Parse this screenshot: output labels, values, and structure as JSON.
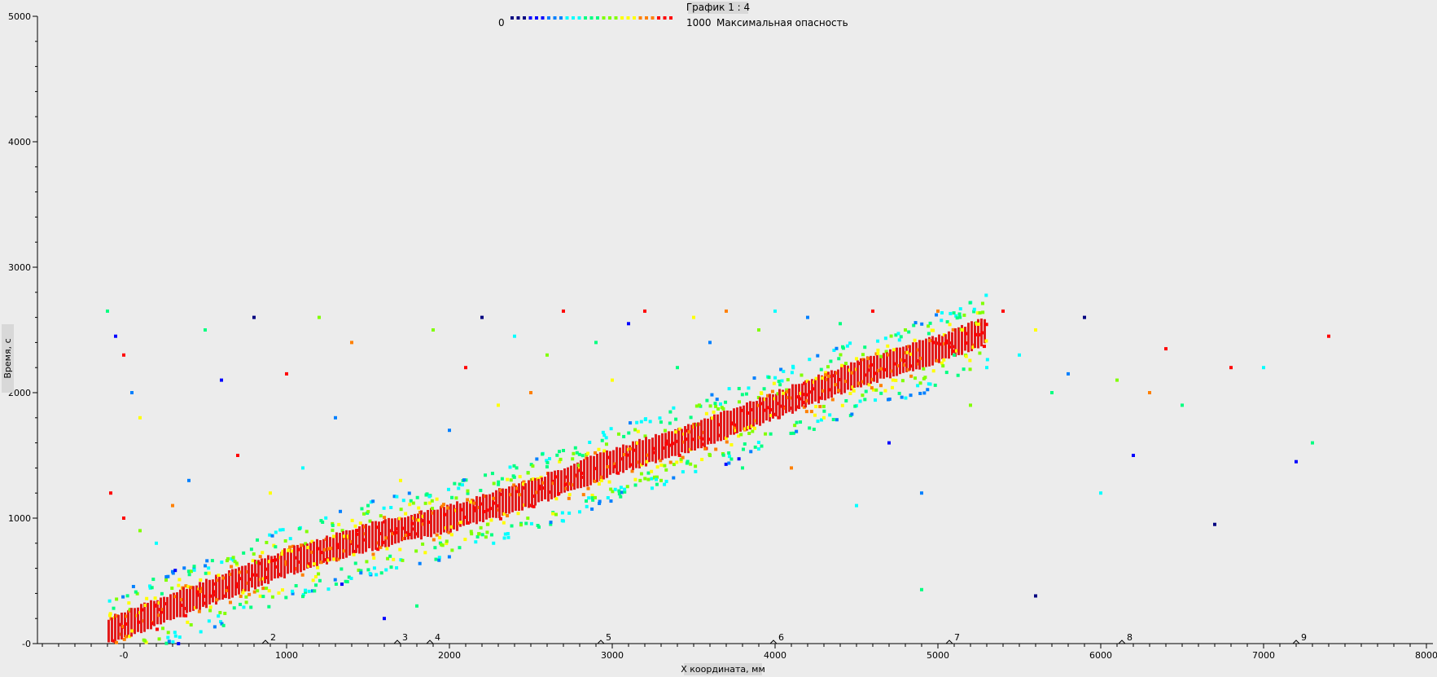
{
  "chart_data": {
    "type": "scatter",
    "title": "График 1 : 4",
    "xlabel": "X координата, мм",
    "ylabel": "Время, с",
    "xlim": [
      -500,
      8000
    ],
    "ylim": [
      0,
      5000
    ],
    "x_ticks": [
      0,
      1000,
      2000,
      3000,
      4000,
      5000,
      6000,
      7000,
      8000
    ],
    "x_tick_labels": [
      "-0",
      "1000",
      "2000",
      "3000",
      "4000",
      "5000",
      "6000",
      "7000",
      "8000"
    ],
    "y_ticks": [
      0,
      1000,
      2000,
      3000,
      4000,
      5000
    ],
    "y_tick_labels": [
      "-0",
      "1000",
      "2000",
      "3000",
      "4000",
      "5000"
    ],
    "color_scale": {
      "min_label": "0",
      "max_label": "1000",
      "caption": "Максимальная опасность",
      "colors": [
        "#000080",
        "#0000ff",
        "#0080ff",
        "#00ffff",
        "#00ff80",
        "#80ff00",
        "#ffff00",
        "#ff8000",
        "#ff0000"
      ]
    },
    "markers": [
      {
        "label": "2",
        "x": 870
      },
      {
        "label": "3",
        "x": 1680
      },
      {
        "label": "4",
        "x": 1880
      },
      {
        "label": "5",
        "x": 2930
      },
      {
        "label": "6",
        "x": 3990
      },
      {
        "label": "7",
        "x": 5070
      },
      {
        "label": "8",
        "x": 6130
      },
      {
        "label": "9",
        "x": 7200
      }
    ],
    "main_band": {
      "description_free": true,
      "points": [
        [
          -100,
          100
        ],
        [
          500,
          400
        ],
        [
          1000,
          650
        ],
        [
          1500,
          850
        ],
        [
          2000,
          1000
        ],
        [
          2500,
          1200
        ],
        [
          3000,
          1450
        ],
        [
          3500,
          1650
        ],
        [
          4000,
          1900
        ],
        [
          4500,
          2150
        ],
        [
          5000,
          2350
        ],
        [
          5300,
          2500
        ]
      ]
    },
    "scatter_points": [
      [
        -100,
        2650,
        500
      ],
      [
        -50,
        2450,
        200
      ],
      [
        0,
        2300,
        900
      ],
      [
        50,
        2000,
        300
      ],
      [
        100,
        1800,
        700
      ],
      [
        -80,
        1200,
        900
      ],
      [
        0,
        1000,
        950
      ],
      [
        100,
        900,
        600
      ],
      [
        200,
        800,
        400
      ],
      [
        300,
        1100,
        800
      ],
      [
        400,
        1300,
        300
      ],
      [
        500,
        2500,
        500
      ],
      [
        600,
        2100,
        200
      ],
      [
        700,
        1500,
        900
      ],
      [
        800,
        2600,
        100
      ],
      [
        900,
        1200,
        700
      ],
      [
        1000,
        2150,
        950
      ],
      [
        1100,
        1400,
        400
      ],
      [
        1200,
        2600,
        600
      ],
      [
        1300,
        1800,
        300
      ],
      [
        1400,
        2400,
        850
      ],
      [
        1500,
        1100,
        550
      ],
      [
        1600,
        200,
        150
      ],
      [
        1700,
        1300,
        750
      ],
      [
        1800,
        300,
        450
      ],
      [
        1900,
        2500,
        650
      ],
      [
        2000,
        1700,
        300
      ],
      [
        2100,
        2200,
        900
      ],
      [
        2200,
        2600,
        100
      ],
      [
        2300,
        1900,
        700
      ],
      [
        2400,
        2450,
        400
      ],
      [
        2500,
        2000,
        850
      ],
      [
        2600,
        2300,
        600
      ],
      [
        2700,
        2650,
        950
      ],
      [
        2800,
        1050,
        350
      ],
      [
        2900,
        2400,
        500
      ],
      [
        3000,
        2100,
        750
      ],
      [
        3100,
        2550,
        200
      ],
      [
        3200,
        2650,
        900
      ],
      [
        3300,
        1300,
        600
      ],
      [
        3400,
        2200,
        450
      ],
      [
        3500,
        2600,
        700
      ],
      [
        3600,
        2400,
        300
      ],
      [
        3700,
        2650,
        850
      ],
      [
        3800,
        1400,
        550
      ],
      [
        3900,
        2500,
        650
      ],
      [
        4000,
        2650,
        400
      ],
      [
        4100,
        1400,
        800
      ],
      [
        4200,
        2600,
        250
      ],
      [
        4300,
        1800,
        700
      ],
      [
        4400,
        2550,
        500
      ],
      [
        4500,
        1100,
        350
      ],
      [
        4600,
        2650,
        900
      ],
      [
        4700,
        1600,
        150
      ],
      [
        4800,
        2500,
        600
      ],
      [
        4900,
        1200,
        300
      ],
      [
        5000,
        2650,
        800
      ],
      [
        5100,
        2300,
        450
      ],
      [
        5200,
        1900,
        650
      ],
      [
        5300,
        2200,
        350
      ],
      [
        5400,
        2650,
        950
      ],
      [
        5500,
        2300,
        400
      ],
      [
        5600,
        2500,
        700
      ],
      [
        5700,
        2000,
        550
      ],
      [
        5800,
        2150,
        300
      ],
      [
        5900,
        2600,
        100
      ],
      [
        6000,
        1200,
        400
      ],
      [
        6100,
        2100,
        650
      ],
      [
        6200,
        1500,
        200
      ],
      [
        6300,
        2000,
        800
      ],
      [
        6400,
        2350,
        900
      ],
      [
        6500,
        1900,
        550
      ],
      [
        6700,
        950,
        100
      ],
      [
        6800,
        2200,
        950
      ],
      [
        7000,
        2200,
        350
      ],
      [
        7200,
        1450,
        150
      ],
      [
        7300,
        1600,
        550
      ],
      [
        7400,
        2450,
        950
      ],
      [
        5600,
        380,
        100
      ],
      [
        4900,
        430,
        450
      ]
    ]
  }
}
